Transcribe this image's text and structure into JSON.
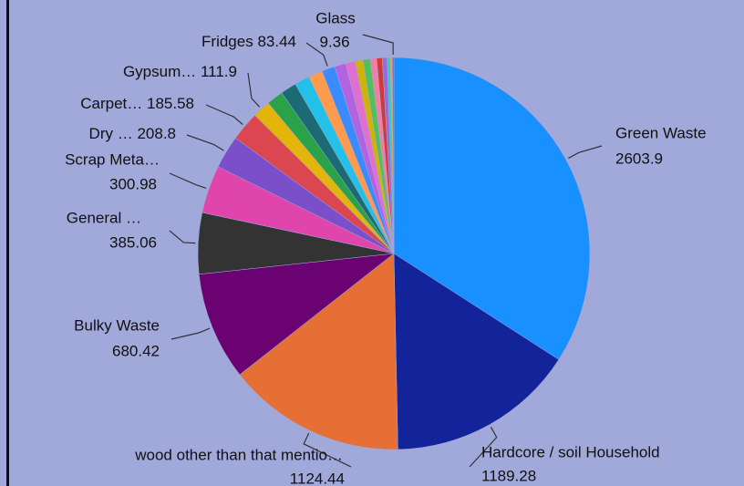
{
  "chart_data": {
    "type": "pie",
    "categories": [
      "Green Waste",
      "Hardcore / soil Household",
      "wood other than that mentio…",
      "Bulky Waste",
      "General …",
      "Scrap Meta…",
      "Dry …",
      "Carpet…",
      "Gypsum…",
      null,
      null,
      null,
      null,
      "Fridges",
      null,
      null,
      null,
      null,
      null,
      null,
      null,
      null,
      null,
      "Glass"
    ],
    "values": [
      2603.9,
      1189.28,
      1124.44,
      680.42,
      385.06,
      300.98,
      208.8,
      185.58,
      111.9,
      105,
      100,
      95,
      90,
      83.44,
      70,
      60,
      50,
      45,
      40,
      35,
      30,
      20,
      13,
      9.36
    ],
    "colors": [
      "#1890ff",
      "#13239a",
      "#e66f35",
      "#6a0272",
      "#333333",
      "#e045ac",
      "#7b4fca",
      "#db4650",
      "#e3b50c",
      "#2aa248",
      "#1c6a73",
      "#23c0e8",
      "#ff9b4e",
      "#3a8bff",
      "#b363e0",
      "#e06fd0",
      "#cfb20a",
      "#4fc05c",
      "#f07fa2",
      "#cf3b3b",
      "#9a6ad8",
      "#2ad0c0",
      "#f0a040",
      "#c05050"
    ]
  }
}
